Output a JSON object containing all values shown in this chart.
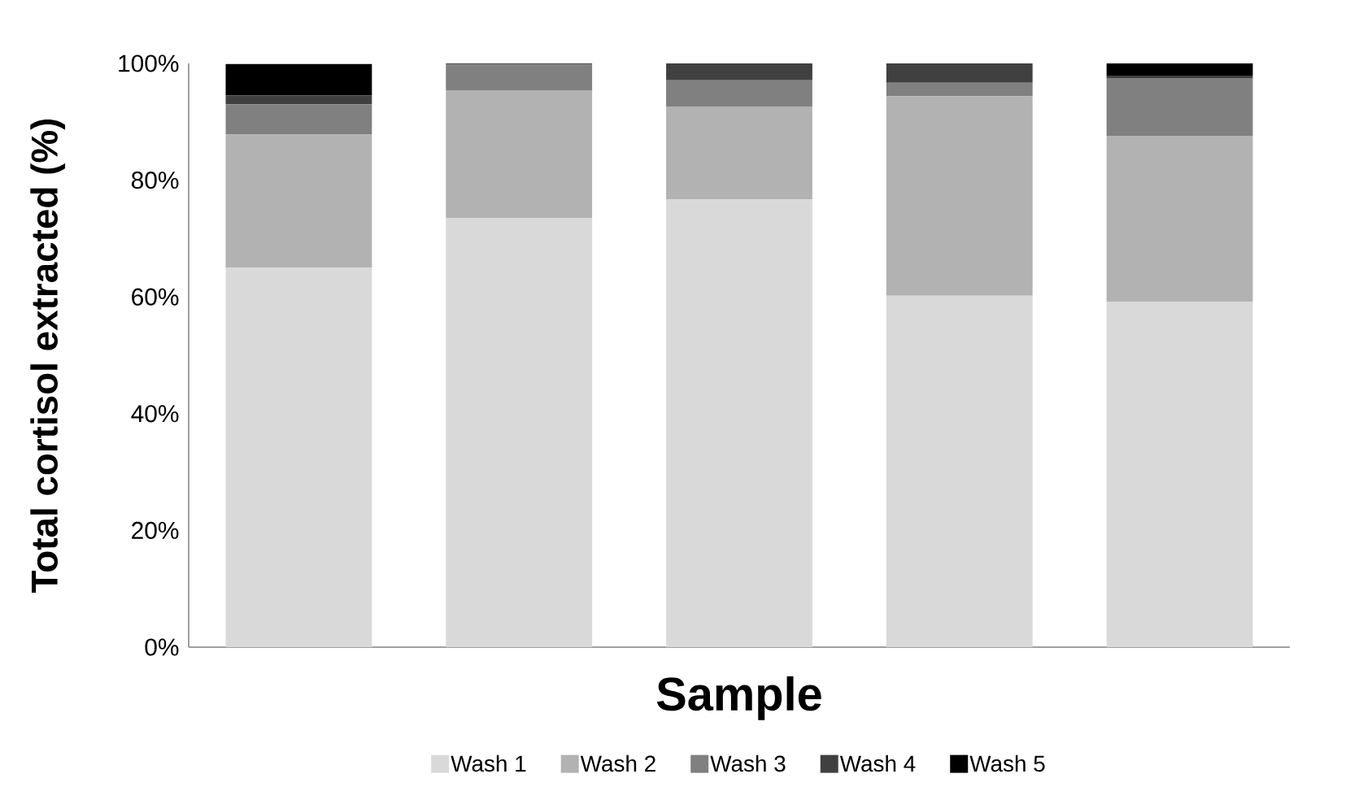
{
  "chart_data": {
    "type": "bar",
    "stacked": true,
    "ylabel": "Total cortisol extracted (%)",
    "xlabel": "Sample",
    "categories": [
      null,
      null,
      null,
      null,
      null
    ],
    "series": [
      {
        "name": "Wash 1",
        "color": "#d9d9d9",
        "values": [
          65.0,
          73.5,
          76.7,
          60.2,
          59.2
        ]
      },
      {
        "name": "Wash 2",
        "color": "#b2b2b2",
        "values": [
          22.8,
          21.9,
          15.9,
          34.2,
          28.4
        ]
      },
      {
        "name": "Wash 3",
        "color": "#808080",
        "values": [
          5.2,
          4.4,
          4.5,
          2.3,
          9.9
        ]
      },
      {
        "name": "Wash 4",
        "color": "#404040",
        "values": [
          1.5,
          0.2,
          2.9,
          3.3,
          0.4
        ]
      },
      {
        "name": "Wash 5",
        "color": "#000000",
        "values": [
          5.4,
          0.0,
          0.0,
          0.0,
          2.1
        ]
      }
    ],
    "ylim": [
      0,
      100
    ],
    "yticks": [
      {
        "value": 0,
        "label": "0%"
      },
      {
        "value": 20,
        "label": "20%"
      },
      {
        "value": 40,
        "label": "40%"
      },
      {
        "value": 60,
        "label": "60%"
      },
      {
        "value": 80,
        "label": "80%"
      },
      {
        "value": 100,
        "label": "100%"
      }
    ],
    "legend": "bottom"
  }
}
